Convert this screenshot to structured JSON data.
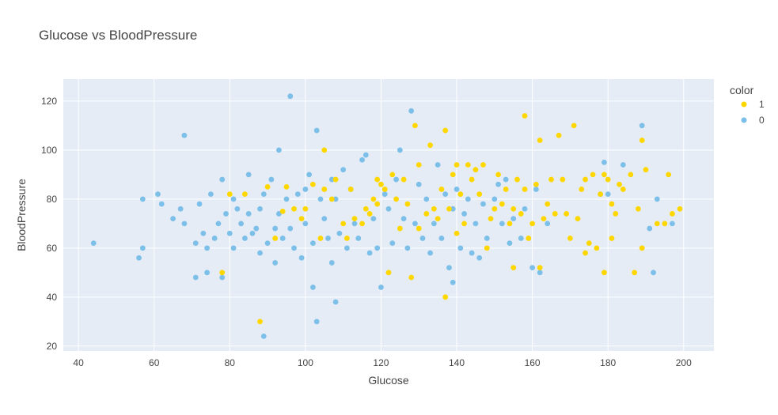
{
  "chart_data": {
    "type": "scatter",
    "title": "Glucose vs BloodPressure",
    "xlabel": "Glucose",
    "ylabel": "BloodPressure",
    "xlim": [
      36,
      208
    ],
    "ylim": [
      18,
      129
    ],
    "x_ticks": [
      40,
      60,
      80,
      100,
      120,
      140,
      160,
      180,
      200
    ],
    "y_ticks": [
      20,
      40,
      60,
      80,
      100,
      120
    ],
    "grid": true,
    "legend": {
      "title": "color",
      "position": "top-right"
    },
    "series": [
      {
        "name": "1",
        "color": "#FFD700",
        "points": [
          [
            78,
            50
          ],
          [
            80,
            82
          ],
          [
            84,
            82
          ],
          [
            88,
            30
          ],
          [
            90,
            85
          ],
          [
            92,
            64
          ],
          [
            94,
            75
          ],
          [
            95,
            85
          ],
          [
            97,
            76
          ],
          [
            99,
            72
          ],
          [
            100,
            76
          ],
          [
            102,
            86
          ],
          [
            104,
            64
          ],
          [
            105,
            100
          ],
          [
            105,
            84
          ],
          [
            107,
            80
          ],
          [
            108,
            88
          ],
          [
            110,
            70
          ],
          [
            111,
            64
          ],
          [
            112,
            84
          ],
          [
            113,
            72
          ],
          [
            115,
            70
          ],
          [
            116,
            76
          ],
          [
            117,
            74
          ],
          [
            118,
            80
          ],
          [
            119,
            78
          ],
          [
            119,
            88
          ],
          [
            120,
            86
          ],
          [
            121,
            84
          ],
          [
            122,
            50
          ],
          [
            123,
            90
          ],
          [
            124,
            80
          ],
          [
            125,
            68
          ],
          [
            126,
            88
          ],
          [
            127,
            78
          ],
          [
            128,
            48
          ],
          [
            129,
            110
          ],
          [
            130,
            68
          ],
          [
            130,
            94
          ],
          [
            132,
            74
          ],
          [
            133,
            102
          ],
          [
            134,
            76
          ],
          [
            135,
            72
          ],
          [
            136,
            84
          ],
          [
            137,
            108
          ],
          [
            137,
            40
          ],
          [
            138,
            76
          ],
          [
            139,
            90
          ],
          [
            140,
            94
          ],
          [
            140,
            66
          ],
          [
            141,
            82
          ],
          [
            142,
            70
          ],
          [
            143,
            94
          ],
          [
            144,
            88
          ],
          [
            145,
            92
          ],
          [
            146,
            82
          ],
          [
            147,
            94
          ],
          [
            148,
            60
          ],
          [
            149,
            72
          ],
          [
            150,
            76
          ],
          [
            151,
            90
          ],
          [
            152,
            78
          ],
          [
            153,
            84
          ],
          [
            154,
            70
          ],
          [
            155,
            76
          ],
          [
            155,
            52
          ],
          [
            156,
            88
          ],
          [
            157,
            74
          ],
          [
            158,
            114
          ],
          [
            158,
            84
          ],
          [
            159,
            64
          ],
          [
            160,
            70
          ],
          [
            161,
            86
          ],
          [
            162,
            104
          ],
          [
            162,
            52
          ],
          [
            163,
            72
          ],
          [
            164,
            78
          ],
          [
            165,
            88
          ],
          [
            166,
            74
          ],
          [
            167,
            106
          ],
          [
            168,
            88
          ],
          [
            169,
            74
          ],
          [
            170,
            64
          ],
          [
            171,
            110
          ],
          [
            172,
            72
          ],
          [
            173,
            84
          ],
          [
            174,
            88
          ],
          [
            174,
            58
          ],
          [
            175,
            62
          ],
          [
            176,
            90
          ],
          [
            177,
            60
          ],
          [
            178,
            82
          ],
          [
            179,
            50
          ],
          [
            179,
            90
          ],
          [
            180,
            88
          ],
          [
            181,
            78
          ],
          [
            181,
            64
          ],
          [
            182,
            74
          ],
          [
            183,
            86
          ],
          [
            184,
            84
          ],
          [
            186,
            90
          ],
          [
            187,
            50
          ],
          [
            188,
            76
          ],
          [
            189,
            104
          ],
          [
            189,
            60
          ],
          [
            190,
            92
          ],
          [
            193,
            70
          ],
          [
            195,
            70
          ],
          [
            196,
            90
          ],
          [
            197,
            74
          ],
          [
            199,
            76
          ]
        ]
      },
      {
        "name": "0",
        "color": "#7CBFE8",
        "points": [
          [
            44,
            62
          ],
          [
            56,
            56
          ],
          [
            57,
            60
          ],
          [
            57,
            80
          ],
          [
            61,
            82
          ],
          [
            62,
            78
          ],
          [
            65,
            72
          ],
          [
            67,
            76
          ],
          [
            68,
            70
          ],
          [
            68,
            106
          ],
          [
            71,
            62
          ],
          [
            71,
            48
          ],
          [
            72,
            78
          ],
          [
            73,
            66
          ],
          [
            74,
            60
          ],
          [
            74,
            50
          ],
          [
            75,
            82
          ],
          [
            76,
            64
          ],
          [
            77,
            70
          ],
          [
            78,
            88
          ],
          [
            78,
            48
          ],
          [
            79,
            74
          ],
          [
            80,
            66
          ],
          [
            81,
            80
          ],
          [
            81,
            60
          ],
          [
            82,
            76
          ],
          [
            83,
            70
          ],
          [
            84,
            64
          ],
          [
            85,
            74
          ],
          [
            85,
            90
          ],
          [
            86,
            66
          ],
          [
            87,
            68
          ],
          [
            88,
            58
          ],
          [
            88,
            76
          ],
          [
            89,
            24
          ],
          [
            89,
            82
          ],
          [
            90,
            62
          ],
          [
            91,
            88
          ],
          [
            92,
            54
          ],
          [
            92,
            68
          ],
          [
            93,
            100
          ],
          [
            93,
            74
          ],
          [
            94,
            64
          ],
          [
            95,
            80
          ],
          [
            96,
            122
          ],
          [
            96,
            68
          ],
          [
            97,
            60
          ],
          [
            98,
            82
          ],
          [
            99,
            56
          ],
          [
            100,
            70
          ],
          [
            100,
            84
          ],
          [
            101,
            90
          ],
          [
            102,
            62
          ],
          [
            102,
            44
          ],
          [
            103,
            108
          ],
          [
            103,
            30
          ],
          [
            104,
            80
          ],
          [
            105,
            72
          ],
          [
            106,
            64
          ],
          [
            107,
            54
          ],
          [
            107,
            88
          ],
          [
            108,
            80
          ],
          [
            108,
            38
          ],
          [
            109,
            66
          ],
          [
            110,
            92
          ],
          [
            111,
            60
          ],
          [
            112,
            84
          ],
          [
            113,
            70
          ],
          [
            114,
            64
          ],
          [
            115,
            96
          ],
          [
            116,
            98
          ],
          [
            117,
            58
          ],
          [
            118,
            72
          ],
          [
            119,
            60
          ],
          [
            120,
            44
          ],
          [
            121,
            82
          ],
          [
            122,
            76
          ],
          [
            123,
            62
          ],
          [
            124,
            88
          ],
          [
            125,
            100
          ],
          [
            126,
            72
          ],
          [
            127,
            60
          ],
          [
            128,
            116
          ],
          [
            129,
            70
          ],
          [
            130,
            86
          ],
          [
            131,
            64
          ],
          [
            132,
            80
          ],
          [
            133,
            58
          ],
          [
            134,
            70
          ],
          [
            135,
            94
          ],
          [
            136,
            64
          ],
          [
            137,
            82
          ],
          [
            138,
            52
          ],
          [
            139,
            46
          ],
          [
            139,
            76
          ],
          [
            140,
            84
          ],
          [
            141,
            60
          ],
          [
            142,
            74
          ],
          [
            143,
            80
          ],
          [
            144,
            58
          ],
          [
            145,
            70
          ],
          [
            146,
            56
          ],
          [
            147,
            78
          ],
          [
            148,
            64
          ],
          [
            150,
            80
          ],
          [
            151,
            86
          ],
          [
            152,
            70
          ],
          [
            153,
            88
          ],
          [
            154,
            62
          ],
          [
            155,
            72
          ],
          [
            157,
            64
          ],
          [
            158,
            76
          ],
          [
            160,
            52
          ],
          [
            161,
            84
          ],
          [
            162,
            50
          ],
          [
            164,
            70
          ],
          [
            178,
            82
          ],
          [
            179,
            95
          ],
          [
            180,
            82
          ],
          [
            184,
            94
          ],
          [
            189,
            110
          ],
          [
            191,
            68
          ],
          [
            192,
            50
          ],
          [
            193,
            80
          ],
          [
            197,
            70
          ]
        ]
      }
    ]
  }
}
